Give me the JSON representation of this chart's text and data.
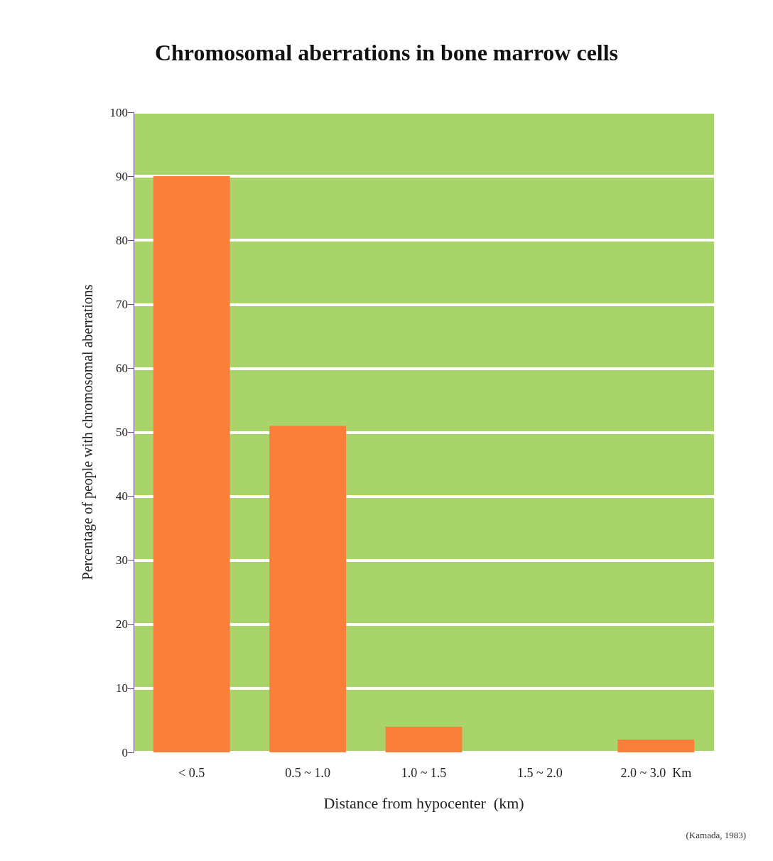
{
  "chart_data": {
    "type": "bar",
    "title": "Chromosomal aberrations in bone marrow cells",
    "xlabel": "Distance from hypocenter  (km)",
    "ylabel": "Percentage of people with chromosomal aberrations",
    "categories": [
      "< 0.5",
      "0.5 ~ 1.0",
      "1.0 ~ 1.5",
      "1.5 ~ 2.0",
      "2.0 ~ 3.0  Km"
    ],
    "values": [
      90,
      51,
      4,
      0,
      2
    ],
    "color": "#f97f3a",
    "ylim": [
      0,
      100
    ],
    "yticks": [
      0,
      10,
      20,
      30,
      40,
      50,
      60,
      70,
      80,
      90,
      100
    ],
    "grid": "y",
    "annotations": [
      "(Kamada, 1983)"
    ]
  }
}
